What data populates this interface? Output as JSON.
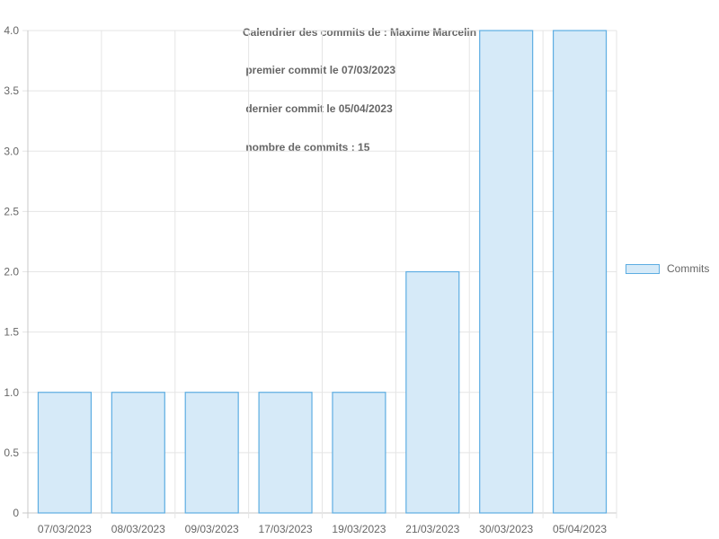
{
  "chart_data": {
    "type": "bar",
    "title_lines": [
      "Calendrier des commits de : Maxime Marcelin",
      " premier commit le 07/03/2023",
      " dernier commit le 05/04/2023",
      " nombre de commits : 15"
    ],
    "categories": [
      "07/03/2023",
      "08/03/2023",
      "09/03/2023",
      "17/03/2023",
      "19/03/2023",
      "21/03/2023",
      "30/03/2023",
      "05/04/2023"
    ],
    "series": [
      {
        "name": "Commits",
        "values": [
          1,
          1,
          1,
          1,
          1,
          2,
          4,
          4
        ]
      }
    ],
    "ylim": [
      0,
      4
    ],
    "yticks": [
      "0",
      "0.5",
      "1.0",
      "1.5",
      "2.0",
      "2.5",
      "3.0",
      "3.5",
      "4.0"
    ],
    "legend_position": "right",
    "grid": true,
    "colors": {
      "bar_fill": "#d6eaf8",
      "bar_border": "#5dade2",
      "grid": "#e5e5e5",
      "text": "#666666"
    }
  },
  "legend": {
    "label": "Commits"
  }
}
